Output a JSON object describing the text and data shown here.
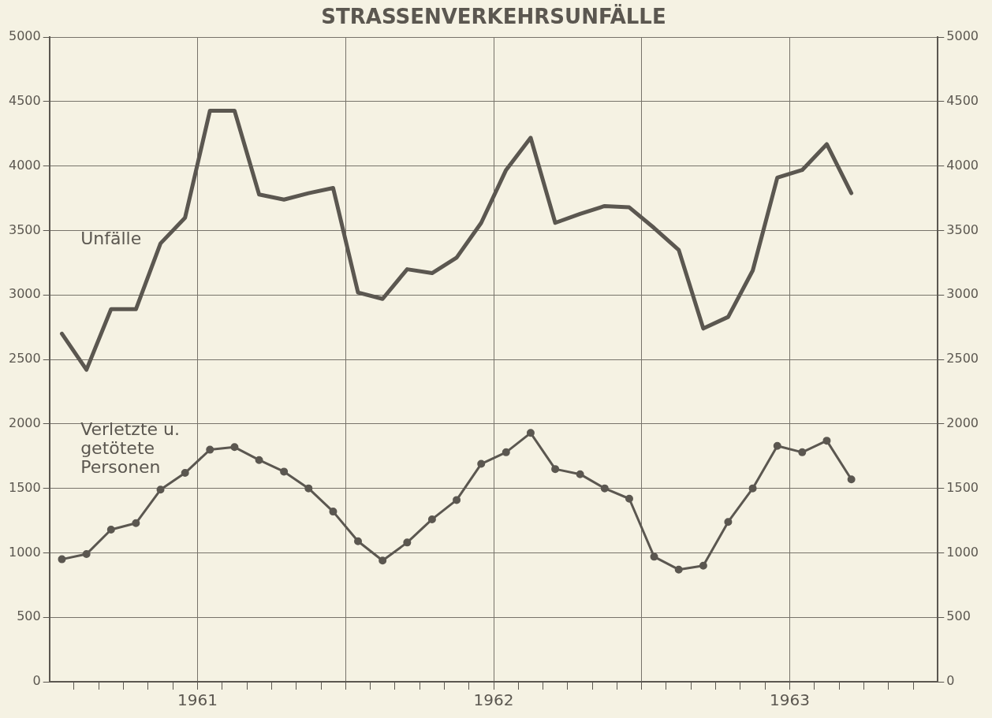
{
  "chart_data": {
    "type": "line",
    "title": "STRASSENVERKEHRSUNFÄLLE",
    "x": [
      1961.042,
      1961.125,
      1961.208,
      1961.292,
      1961.375,
      1961.458,
      1961.542,
      1961.625,
      1961.708,
      1961.792,
      1961.875,
      1961.958,
      1962.042,
      1962.125,
      1962.208,
      1962.292,
      1962.375,
      1962.458,
      1962.542,
      1962.625,
      1962.708,
      1962.792,
      1962.875,
      1962.958,
      1963.042,
      1963.125,
      1963.208,
      1963.292,
      1963.375,
      1963.458,
      1963.542,
      1963.625,
      1963.708
    ],
    "series": [
      {
        "name": "Unfälle",
        "color": "#5b5750",
        "marker": "none",
        "values": [
          2700,
          2420,
          2890,
          2890,
          3400,
          3600,
          4430,
          4430,
          3780,
          3740,
          3790,
          3830,
          3020,
          2970,
          3200,
          3170,
          3290,
          3560,
          3970,
          4220,
          3560,
          3630,
          3690,
          3680,
          3520,
          3350,
          2740,
          2830,
          3190,
          3910,
          3970,
          4170,
          3790
        ]
      },
      {
        "name": "Verletzte u. getötete Personen",
        "color": "#5b5750",
        "marker": "circle",
        "values": [
          950,
          990,
          1180,
          1230,
          1490,
          1620,
          1800,
          1820,
          1720,
          1630,
          1500,
          1320,
          1090,
          940,
          1080,
          1260,
          1410,
          1690,
          1780,
          1930,
          1650,
          1610,
          1500,
          1420,
          970,
          870,
          900,
          1240,
          1500,
          1830,
          1780,
          1870,
          1570
        ]
      }
    ],
    "xlim": [
      1961,
      1964
    ],
    "xticks": [
      {
        "value": 1961.083,
        "label": null
      },
      {
        "value": 1961.167,
        "label": null
      },
      {
        "value": 1961.25,
        "label": null
      },
      {
        "value": 1961.333,
        "label": null
      },
      {
        "value": 1961.417,
        "label": null
      },
      {
        "value": 1961.5,
        "label": "1961"
      },
      {
        "value": 1961.583,
        "label": null
      },
      {
        "value": 1961.667,
        "label": null
      },
      {
        "value": 1961.75,
        "label": null
      },
      {
        "value": 1961.833,
        "label": null
      },
      {
        "value": 1961.917,
        "label": null
      },
      {
        "value": 1962,
        "label": null
      },
      {
        "value": 1962.083,
        "label": null
      },
      {
        "value": 1962.167,
        "label": null
      },
      {
        "value": 1962.25,
        "label": null
      },
      {
        "value": 1962.333,
        "label": null
      },
      {
        "value": 1962.417,
        "label": null
      },
      {
        "value": 1962.5,
        "label": "1962"
      },
      {
        "value": 1962.583,
        "label": null
      },
      {
        "value": 1962.667,
        "label": null
      },
      {
        "value": 1962.75,
        "label": null
      },
      {
        "value": 1962.833,
        "label": null
      },
      {
        "value": 1962.917,
        "label": null
      },
      {
        "value": 1963,
        "label": null
      },
      {
        "value": 1963.083,
        "label": null
      },
      {
        "value": 1963.167,
        "label": null
      },
      {
        "value": 1963.25,
        "label": null
      },
      {
        "value": 1963.333,
        "label": null
      },
      {
        "value": 1963.417,
        "label": null
      },
      {
        "value": 1963.5,
        "label": "1963"
      },
      {
        "value": 1963.583,
        "label": null
      },
      {
        "value": 1963.667,
        "label": null
      },
      {
        "value": 1963.75,
        "label": null
      },
      {
        "value": 1963.833,
        "label": null
      },
      {
        "value": 1963.917,
        "label": null
      }
    ],
    "ylim": [
      0,
      5000
    ],
    "yticks": [
      0,
      500,
      1000,
      1500,
      2000,
      2500,
      3000,
      3500,
      4000,
      4500,
      5000
    ],
    "y2lim": [
      0,
      5000
    ],
    "y2ticks": [
      0,
      500,
      1000,
      1500,
      2000,
      2500,
      3000,
      3500,
      4000,
      4500,
      5000
    ],
    "grid": true
  }
}
